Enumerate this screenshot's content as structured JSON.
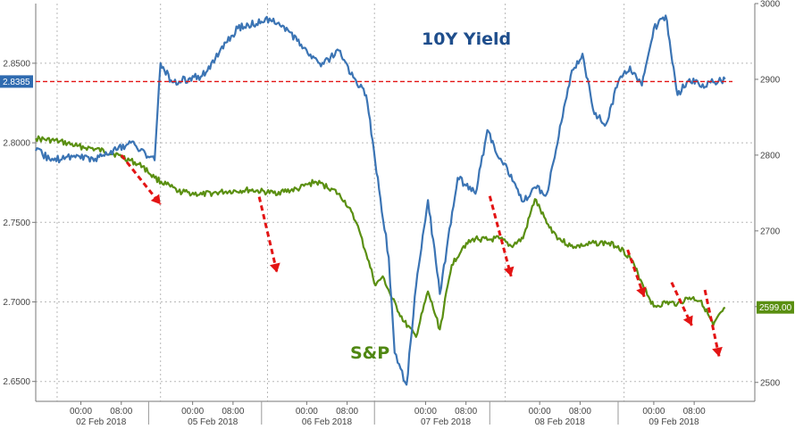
{
  "chart_data": {
    "type": "line",
    "annotations": {
      "yield_label": "10Y Yield",
      "sp_label": "S&P"
    },
    "colors": {
      "yield": "#3b74b4",
      "sp": "#5a8f11",
      "ref_line": "#e31414",
      "arrow": "#e31414",
      "grid": "#b8b8b8"
    },
    "y_left": {
      "ylim": [
        2.6375,
        2.8875
      ],
      "ticks": [
        "2.6500",
        "2.7000",
        "2.7500",
        "2.8000",
        "2.8500"
      ]
    },
    "y_right": {
      "ylim": [
        2475,
        3000
      ],
      "ticks": [
        "2500",
        "2600",
        "2700",
        "2800",
        "2900",
        "3000"
      ]
    },
    "reference_line": {
      "value": 2.8385,
      "label": "2.8385"
    },
    "last_value_badge": {
      "value": 2599,
      "label": "2599.00"
    },
    "x_tick_labels": [
      "00:00",
      "08:00",
      "00:00",
      "08:00",
      "00:00",
      "08:00",
      "00:00",
      "08:00",
      "00:00",
      "08:00",
      "00:00",
      "08:00"
    ],
    "dates": [
      "02 Feb 2018",
      "05 Feb 2018",
      "06 Feb 2018",
      "07 Feb 2018",
      "08 Feb 2018",
      "09 Feb 2018"
    ],
    "series": [
      {
        "name": "10Y Yield",
        "axis": "left",
        "x": [
          0,
          0.15,
          0.3,
          0.5,
          0.8,
          1.0,
          1.05,
          1.15,
          1.4,
          1.7,
          2.0,
          2.2,
          2.4,
          2.55,
          2.65,
          2.78,
          2.9,
          2.97,
          3.02,
          3.07,
          3.12,
          3.2,
          3.3,
          3.4,
          3.55,
          3.7,
          3.8,
          3.9,
          4.0,
          4.1,
          4.2,
          4.3,
          4.4,
          4.5,
          4.6,
          4.7,
          4.8,
          4.9,
          5.0,
          5.1,
          5.2,
          5.3,
          5.4,
          5.5,
          5.6,
          5.7,
          5.8
        ],
        "values": [
          2.795,
          2.789,
          2.792,
          2.79,
          2.8,
          2.789,
          2.85,
          2.838,
          2.842,
          2.872,
          2.878,
          2.864,
          2.848,
          2.858,
          2.843,
          2.83,
          2.765,
          2.728,
          2.668,
          2.658,
          2.648,
          2.71,
          2.764,
          2.705,
          2.778,
          2.768,
          2.808,
          2.79,
          2.78,
          2.763,
          2.772,
          2.768,
          2.804,
          2.842,
          2.856,
          2.818,
          2.812,
          2.838,
          2.848,
          2.836,
          2.872,
          2.88,
          2.83,
          2.84,
          2.835,
          2.838,
          2.84
        ]
      },
      {
        "name": "S&P",
        "axis": "right",
        "x": [
          0,
          0.2,
          0.35,
          0.5,
          0.7,
          0.9,
          1.0,
          1.2,
          1.4,
          1.6,
          1.8,
          2.0,
          2.2,
          2.35,
          2.5,
          2.6,
          2.7,
          2.78,
          2.86,
          2.92,
          3.0,
          3.1,
          3.2,
          3.3,
          3.4,
          3.5,
          3.6,
          3.7,
          3.8,
          3.9,
          4.0,
          4.1,
          4.2,
          4.3,
          4.4,
          4.5,
          4.6,
          4.7,
          4.8,
          4.9,
          5.0,
          5.1,
          5.2,
          5.3,
          5.4,
          5.5,
          5.6,
          5.7,
          5.8
        ],
        "values": [
          2822,
          2818,
          2812,
          2808,
          2800,
          2785,
          2770,
          2752,
          2748,
          2752,
          2754,
          2750,
          2755,
          2765,
          2755,
          2740,
          2710,
          2670,
          2628,
          2640,
          2610,
          2580,
          2560,
          2620,
          2570,
          2655,
          2680,
          2690,
          2688,
          2690,
          2680,
          2690,
          2742,
          2710,
          2690,
          2680,
          2680,
          2684,
          2684,
          2680,
          2665,
          2632,
          2600,
          2605,
          2604,
          2612,
          2608,
          2575,
          2599
        ]
      }
    ]
  }
}
